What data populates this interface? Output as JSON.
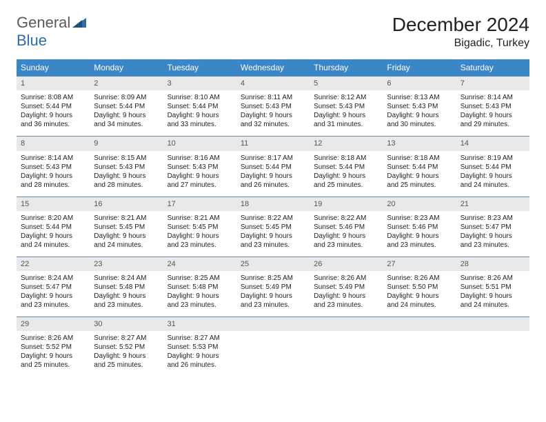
{
  "logo": {
    "general": "General",
    "blue": "Blue"
  },
  "header": {
    "title": "December 2024",
    "location": "Bigadic, Turkey"
  },
  "colors": {
    "header_bg": "#3b86c7",
    "header_text": "#ffffff",
    "daynum_bg": "#e8e9ea",
    "border": "#5a8bb5",
    "logo_gray": "#5a5a5a",
    "logo_blue": "#2e6ca8"
  },
  "weekdays": [
    "Sunday",
    "Monday",
    "Tuesday",
    "Wednesday",
    "Thursday",
    "Friday",
    "Saturday"
  ],
  "weeks": [
    [
      {
        "n": "1",
        "sr": "8:08 AM",
        "ss": "5:44 PM",
        "dl": "9 hours and 36 minutes."
      },
      {
        "n": "2",
        "sr": "8:09 AM",
        "ss": "5:44 PM",
        "dl": "9 hours and 34 minutes."
      },
      {
        "n": "3",
        "sr": "8:10 AM",
        "ss": "5:44 PM",
        "dl": "9 hours and 33 minutes."
      },
      {
        "n": "4",
        "sr": "8:11 AM",
        "ss": "5:43 PM",
        "dl": "9 hours and 32 minutes."
      },
      {
        "n": "5",
        "sr": "8:12 AM",
        "ss": "5:43 PM",
        "dl": "9 hours and 31 minutes."
      },
      {
        "n": "6",
        "sr": "8:13 AM",
        "ss": "5:43 PM",
        "dl": "9 hours and 30 minutes."
      },
      {
        "n": "7",
        "sr": "8:14 AM",
        "ss": "5:43 PM",
        "dl": "9 hours and 29 minutes."
      }
    ],
    [
      {
        "n": "8",
        "sr": "8:14 AM",
        "ss": "5:43 PM",
        "dl": "9 hours and 28 minutes."
      },
      {
        "n": "9",
        "sr": "8:15 AM",
        "ss": "5:43 PM",
        "dl": "9 hours and 28 minutes."
      },
      {
        "n": "10",
        "sr": "8:16 AM",
        "ss": "5:43 PM",
        "dl": "9 hours and 27 minutes."
      },
      {
        "n": "11",
        "sr": "8:17 AM",
        "ss": "5:44 PM",
        "dl": "9 hours and 26 minutes."
      },
      {
        "n": "12",
        "sr": "8:18 AM",
        "ss": "5:44 PM",
        "dl": "9 hours and 25 minutes."
      },
      {
        "n": "13",
        "sr": "8:18 AM",
        "ss": "5:44 PM",
        "dl": "9 hours and 25 minutes."
      },
      {
        "n": "14",
        "sr": "8:19 AM",
        "ss": "5:44 PM",
        "dl": "9 hours and 24 minutes."
      }
    ],
    [
      {
        "n": "15",
        "sr": "8:20 AM",
        "ss": "5:44 PM",
        "dl": "9 hours and 24 minutes."
      },
      {
        "n": "16",
        "sr": "8:21 AM",
        "ss": "5:45 PM",
        "dl": "9 hours and 24 minutes."
      },
      {
        "n": "17",
        "sr": "8:21 AM",
        "ss": "5:45 PM",
        "dl": "9 hours and 23 minutes."
      },
      {
        "n": "18",
        "sr": "8:22 AM",
        "ss": "5:45 PM",
        "dl": "9 hours and 23 minutes."
      },
      {
        "n": "19",
        "sr": "8:22 AM",
        "ss": "5:46 PM",
        "dl": "9 hours and 23 minutes."
      },
      {
        "n": "20",
        "sr": "8:23 AM",
        "ss": "5:46 PM",
        "dl": "9 hours and 23 minutes."
      },
      {
        "n": "21",
        "sr": "8:23 AM",
        "ss": "5:47 PM",
        "dl": "9 hours and 23 minutes."
      }
    ],
    [
      {
        "n": "22",
        "sr": "8:24 AM",
        "ss": "5:47 PM",
        "dl": "9 hours and 23 minutes."
      },
      {
        "n": "23",
        "sr": "8:24 AM",
        "ss": "5:48 PM",
        "dl": "9 hours and 23 minutes."
      },
      {
        "n": "24",
        "sr": "8:25 AM",
        "ss": "5:48 PM",
        "dl": "9 hours and 23 minutes."
      },
      {
        "n": "25",
        "sr": "8:25 AM",
        "ss": "5:49 PM",
        "dl": "9 hours and 23 minutes."
      },
      {
        "n": "26",
        "sr": "8:26 AM",
        "ss": "5:49 PM",
        "dl": "9 hours and 23 minutes."
      },
      {
        "n": "27",
        "sr": "8:26 AM",
        "ss": "5:50 PM",
        "dl": "9 hours and 24 minutes."
      },
      {
        "n": "28",
        "sr": "8:26 AM",
        "ss": "5:51 PM",
        "dl": "9 hours and 24 minutes."
      }
    ],
    [
      {
        "n": "29",
        "sr": "8:26 AM",
        "ss": "5:52 PM",
        "dl": "9 hours and 25 minutes."
      },
      {
        "n": "30",
        "sr": "8:27 AM",
        "ss": "5:52 PM",
        "dl": "9 hours and 25 minutes."
      },
      {
        "n": "31",
        "sr": "8:27 AM",
        "ss": "5:53 PM",
        "dl": "9 hours and 26 minutes."
      },
      null,
      null,
      null,
      null
    ]
  ],
  "labels": {
    "sunrise": "Sunrise: ",
    "sunset": "Sunset: ",
    "daylight": "Daylight: "
  }
}
